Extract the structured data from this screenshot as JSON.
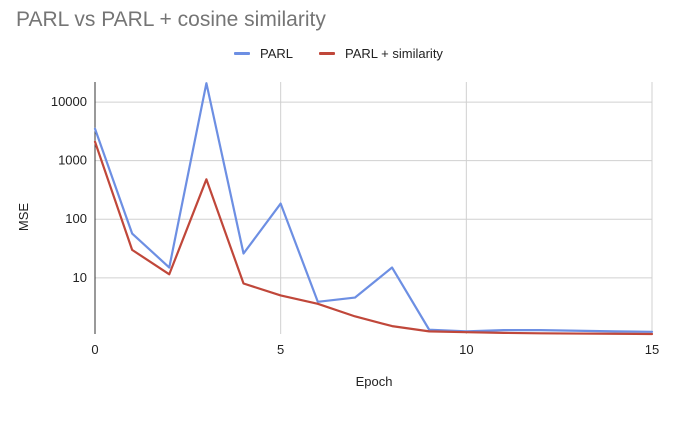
{
  "chart_data": {
    "type": "line",
    "title": "PARL vs PARL + cosine similarity",
    "xlabel": "Epoch",
    "ylabel": "MSE",
    "x": [
      0,
      1,
      2,
      3,
      4,
      5,
      6,
      7,
      8,
      9,
      10,
      11,
      12,
      13,
      14,
      15
    ],
    "xlim": [
      0,
      15
    ],
    "xticks": [
      0,
      5,
      10,
      15
    ],
    "yscale": "log",
    "ylim": [
      1.1,
      22000
    ],
    "yticks": [
      {
        "value": 10,
        "label": "10"
      },
      {
        "value": 100,
        "label": "100"
      },
      {
        "value": 1000,
        "label": "1000"
      },
      {
        "value": 10000,
        "label": "10000"
      }
    ],
    "grid": true,
    "legend_position": "top",
    "series": [
      {
        "name": "PARL",
        "color": "#6d8fe3",
        "values": [
          3500,
          57,
          15,
          21000,
          26,
          185,
          3.9,
          4.6,
          15,
          1.3,
          1.22,
          1.28,
          1.28,
          1.25,
          1.22,
          1.2
        ]
      },
      {
        "name": "PARL + similarity",
        "color": "#c0473a",
        "values": [
          2100,
          30,
          11.5,
          480,
          8,
          5,
          3.6,
          2.2,
          1.5,
          1.22,
          1.18,
          1.15,
          1.13,
          1.12,
          1.11,
          1.1
        ]
      }
    ]
  }
}
